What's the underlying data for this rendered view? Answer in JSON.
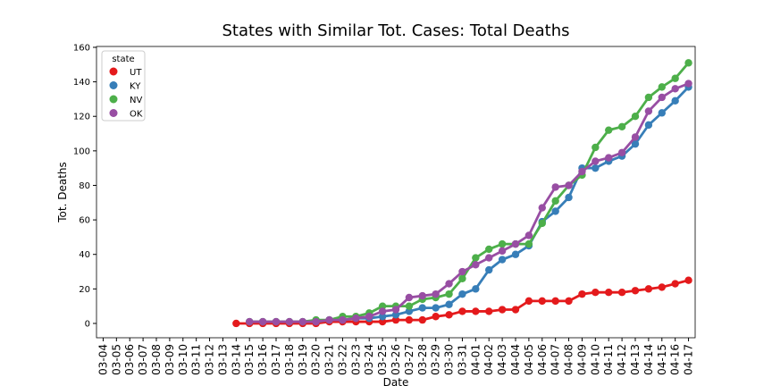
{
  "chart_data": {
    "type": "line",
    "title": "States with Similar Tot. Cases: Total Deaths",
    "x_label": "Date",
    "y_label": "Tot. Deaths",
    "legend_title": "state",
    "legend": "upper left",
    "categories": [
      "03-04",
      "03-05",
      "03-06",
      "03-07",
      "03-08",
      "03-09",
      "03-10",
      "03-11",
      "03-12",
      "03-13",
      "03-14",
      "03-15",
      "03-16",
      "03-17",
      "03-18",
      "03-19",
      "03-20",
      "03-21",
      "03-22",
      "03-23",
      "03-24",
      "03-25",
      "03-26",
      "03-27",
      "03-28",
      "03-29",
      "03-30",
      "03-31",
      "04-01",
      "04-02",
      "04-03",
      "04-04",
      "04-05",
      "04-06",
      "04-07",
      "04-08",
      "04-09",
      "04-10",
      "04-11",
      "04-12",
      "04-13",
      "04-14",
      "04-15",
      "04-16",
      "04-17"
    ],
    "ylim": [
      -8.3,
      160.5
    ],
    "yticks": [
      0,
      20,
      40,
      60,
      80,
      100,
      120,
      140,
      160
    ],
    "series": [
      {
        "name": "UT",
        "color": "#e41a1c",
        "values": [
          null,
          null,
          null,
          null,
          null,
          null,
          null,
          null,
          null,
          null,
          0,
          0,
          0,
          0,
          0,
          0,
          0,
          1,
          1,
          1,
          1,
          1,
          2,
          2,
          2,
          4,
          5,
          7,
          7,
          7,
          8,
          8,
          13,
          13,
          13,
          13,
          17,
          18,
          18,
          18,
          19,
          20,
          21,
          23,
          25
        ]
      },
      {
        "name": "KY",
        "color": "#377eb8",
        "values": [
          null,
          null,
          null,
          null,
          null,
          null,
          null,
          null,
          null,
          null,
          null,
          1,
          1,
          1,
          1,
          1,
          1,
          2,
          2,
          3,
          3,
          4,
          5,
          7,
          9,
          9,
          11,
          17,
          20,
          31,
          37,
          40,
          45,
          59,
          65,
          73,
          90,
          90,
          94,
          97,
          104,
          115,
          122,
          129,
          137
        ]
      },
      {
        "name": "NV",
        "color": "#4daf4a",
        "values": [
          null,
          null,
          null,
          null,
          null,
          null,
          null,
          null,
          null,
          null,
          null,
          1,
          1,
          1,
          1,
          1,
          2,
          2,
          4,
          4,
          6,
          10,
          10,
          10,
          14,
          15,
          17,
          26,
          38,
          43,
          46,
          46,
          46,
          58,
          71,
          80,
          86,
          102,
          112,
          114,
          120,
          131,
          137,
          142,
          151
        ]
      },
      {
        "name": "OK",
        "color": "#984ea3",
        "values": [
          null,
          null,
          null,
          null,
          null,
          null,
          null,
          null,
          null,
          null,
          null,
          1,
          1,
          1,
          1,
          1,
          1,
          2,
          2,
          3,
          4,
          7,
          8,
          15,
          16,
          17,
          23,
          30,
          34,
          38,
          42,
          46,
          51,
          67,
          79,
          80,
          88,
          94,
          96,
          99,
          108,
          123,
          131,
          136,
          139
        ]
      }
    ]
  }
}
